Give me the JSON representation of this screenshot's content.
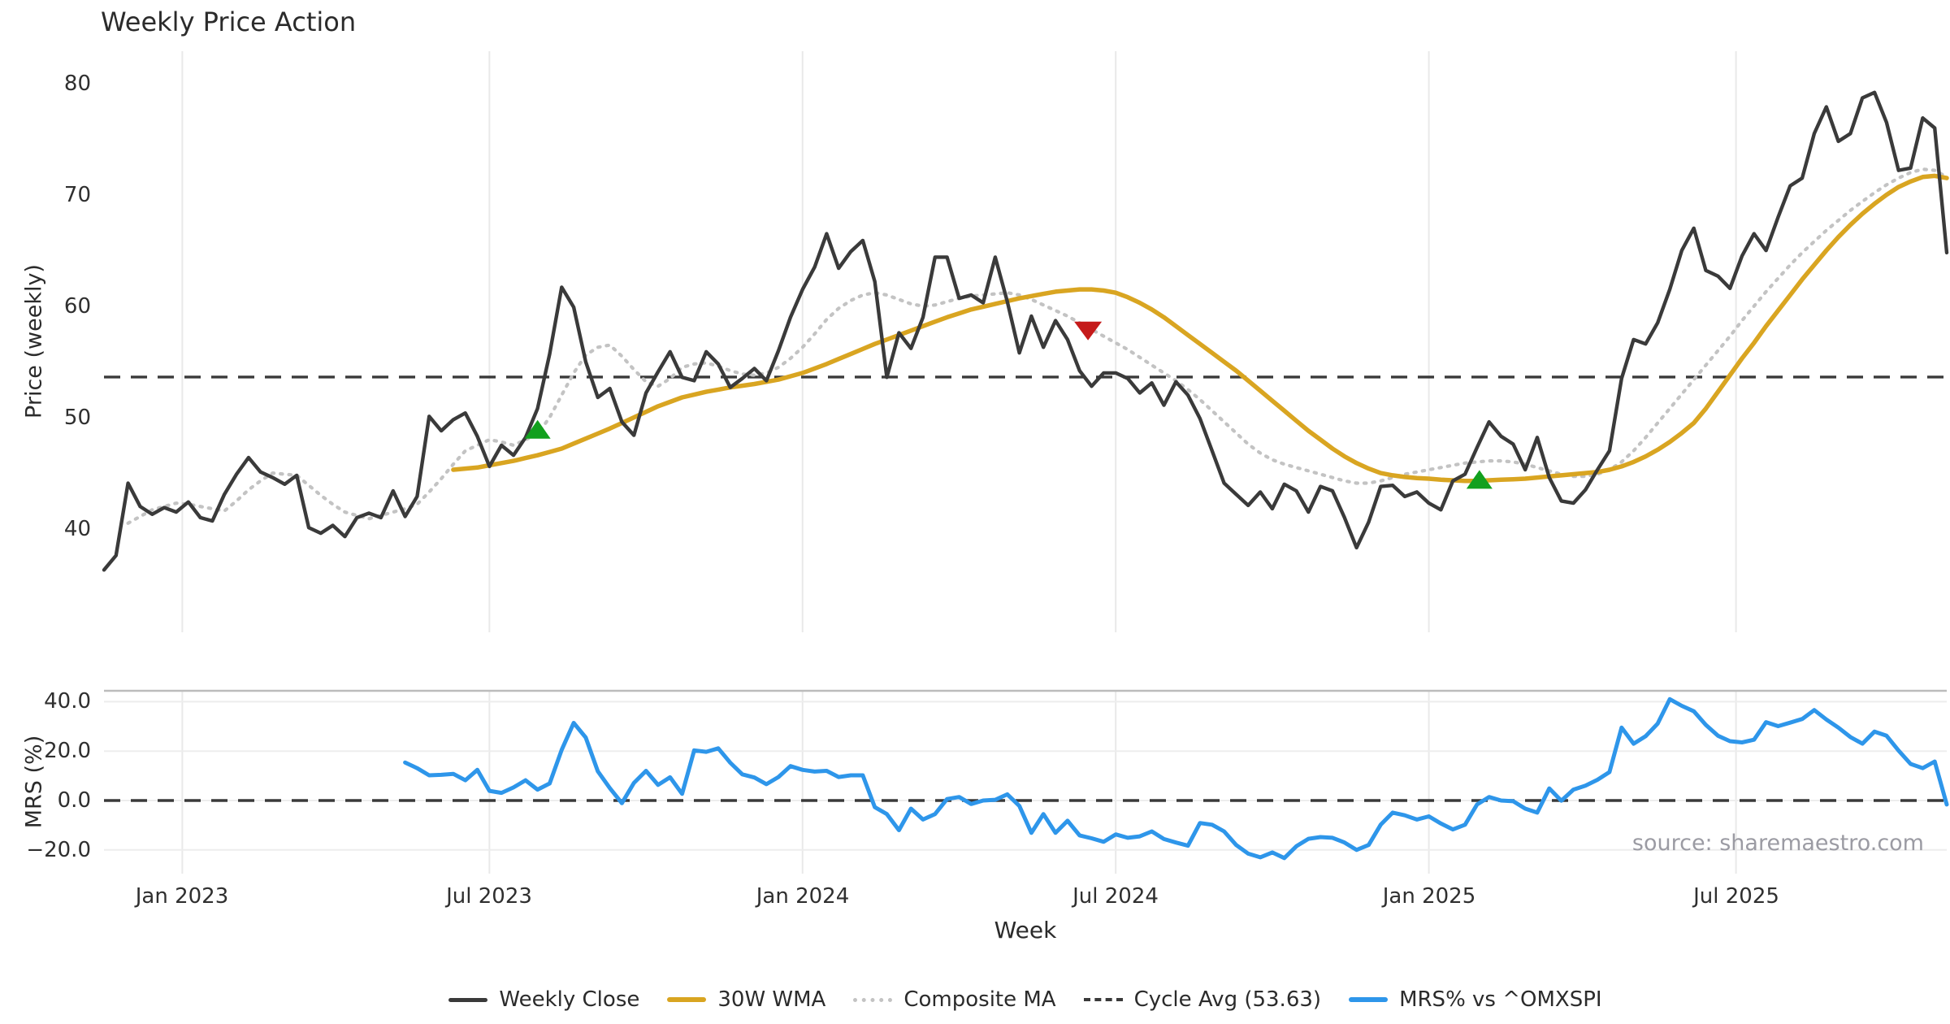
{
  "title": "Weekly Price Action",
  "source_note": "source: sharemaestro.com",
  "colors": {
    "weekly_close": "#3a3a3a",
    "wma": "#d9a521",
    "composite": "#c3c3c3",
    "cycle_avg": "#3a3a3a",
    "mrs": "#2e96ea",
    "buy_marker": "#12a01e",
    "sell_marker": "#c51a1a",
    "grid_vertical": "#e9e9e9",
    "grid_horizontal": "#ededed",
    "panel_spine": "#bcbcbc",
    "text": "#2b2b2b",
    "muted_text": "#9b9ba3"
  },
  "chart_data": [
    {
      "type": "line",
      "panel": "price",
      "title": "Weekly Price Action",
      "ylabel": "Price (weekly)",
      "xlabel": "Week",
      "ylim": [
        30.7,
        82.9
      ],
      "grid": "vertical-only",
      "legend_position": "bottom-center",
      "yticks": [
        {
          "value": 80,
          "label": "80"
        },
        {
          "value": 70,
          "label": "70"
        },
        {
          "value": 60,
          "label": "60"
        },
        {
          "value": 50,
          "label": "50"
        },
        {
          "value": 40,
          "label": "40"
        }
      ],
      "xticks": [
        {
          "week": 6.5,
          "label": "Jan 2023"
        },
        {
          "week": 32,
          "label": "Jul 2023"
        },
        {
          "week": 58,
          "label": "Jan 2024"
        },
        {
          "week": 84,
          "label": "Jul 2024"
        },
        {
          "week": 110,
          "label": "Jan 2025"
        },
        {
          "week": 135.5,
          "label": "Jul 2025"
        }
      ],
      "total_weeks": 154,
      "cycle_avg": 53.63,
      "series": [
        {
          "name": "Weekly Close",
          "style": "solid",
          "color": "#3a3a3a",
          "width": 4.4,
          "start_week": 0,
          "values": [
            36.3,
            37.6,
            44.1,
            42.0,
            41.3,
            41.9,
            41.5,
            42.4,
            41.0,
            40.7,
            43.1,
            44.9,
            46.4,
            45.1,
            44.6,
            44.0,
            44.8,
            40.1,
            39.6,
            40.3,
            39.3,
            41.0,
            41.4,
            41.0,
            43.4,
            41.1,
            42.9,
            50.1,
            48.8,
            49.8,
            50.4,
            48.3,
            45.6,
            47.5,
            46.6,
            48.2,
            50.8,
            55.7,
            61.7,
            59.9,
            55.0,
            51.8,
            52.6,
            49.6,
            48.4,
            52.2,
            54.1,
            55.9,
            53.6,
            53.3,
            55.9,
            54.8,
            52.7,
            53.5,
            54.4,
            53.3,
            56.0,
            59.0,
            61.5,
            63.5,
            66.5,
            63.4,
            64.9,
            65.9,
            62.2,
            53.6,
            57.6,
            56.2,
            59.0,
            64.4,
            64.4,
            60.7,
            61.0,
            60.3,
            64.4,
            60.4,
            55.8,
            59.1,
            56.3,
            58.7,
            57.0,
            54.2,
            52.8,
            54.0,
            54.0,
            53.5,
            52.2,
            53.1,
            51.1,
            53.2,
            52.0,
            49.9,
            47.0,
            44.1,
            43.1,
            42.1,
            43.3,
            41.8,
            44.0,
            43.4,
            41.5,
            43.8,
            43.4,
            41.0,
            38.3,
            40.6,
            43.8,
            43.9,
            42.9,
            43.3,
            42.3,
            41.7,
            44.3,
            44.9,
            47.3,
            49.6,
            48.3,
            47.6,
            45.3,
            48.2,
            44.6,
            42.5,
            42.3,
            43.5,
            45.3,
            47.0,
            53.5,
            57.0,
            56.6,
            58.5,
            61.5,
            65.0,
            67.0,
            63.2,
            62.7,
            61.6,
            64.5,
            66.5,
            65.0,
            68.0,
            70.8,
            71.5,
            75.5,
            77.9,
            74.8,
            75.5,
            78.7,
            79.2,
            76.5,
            72.2,
            72.4,
            76.9,
            76.0,
            64.8
          ]
        },
        {
          "name": "30W WMA",
          "style": "solid",
          "color": "#d9a521",
          "width": 5.5,
          "start_week": 29,
          "values": [
            45.3,
            45.4,
            45.5,
            45.7,
            45.9,
            46.1,
            46.35,
            46.6,
            46.9,
            47.2,
            47.65,
            48.1,
            48.55,
            49.0,
            49.5,
            50.0,
            50.5,
            51.0,
            51.4,
            51.8,
            52.05,
            52.3,
            52.5,
            52.7,
            52.85,
            53.0,
            53.2,
            53.4,
            53.7,
            54.0,
            54.4,
            54.8,
            55.25,
            55.7,
            56.15,
            56.6,
            57.0,
            57.4,
            57.8,
            58.2,
            58.6,
            59.0,
            59.35,
            59.7,
            59.95,
            60.2,
            60.45,
            60.7,
            60.9,
            61.1,
            61.3,
            61.4,
            61.5,
            61.5,
            61.4,
            61.2,
            60.8,
            60.3,
            59.7,
            59.0,
            58.2,
            57.4,
            56.6,
            55.8,
            55.0,
            54.2,
            53.3,
            52.4,
            51.5,
            50.6,
            49.7,
            48.8,
            48.0,
            47.2,
            46.5,
            45.9,
            45.4,
            45.0,
            44.8,
            44.65,
            44.55,
            44.5,
            44.4,
            44.35,
            44.3,
            44.3,
            44.35,
            44.4,
            44.45,
            44.5,
            44.6,
            44.7,
            44.8,
            44.9,
            45.0,
            45.1,
            45.3,
            45.6,
            46.0,
            46.5,
            47.1,
            47.8,
            48.6,
            49.5,
            50.8,
            52.3,
            53.8,
            55.3,
            56.7,
            58.2,
            59.6,
            61.0,
            62.4,
            63.7,
            65.0,
            66.2,
            67.3,
            68.3,
            69.2,
            70.0,
            70.7,
            71.2,
            71.6,
            71.7,
            71.5
          ]
        },
        {
          "name": "Composite MA",
          "style": "dotted",
          "color": "#c3c3c3",
          "width": 4.2,
          "start_week": 2,
          "values": [
            40.5,
            41.1,
            41.7,
            42.0,
            42.3,
            42.2,
            42.0,
            41.8,
            41.6,
            42.5,
            43.5,
            44.3,
            45.0,
            44.9,
            44.8,
            43.9,
            43.0,
            42.2,
            41.5,
            41.2,
            40.9,
            41.2,
            41.5,
            41.8,
            42.2,
            43.3,
            44.5,
            45.8,
            47.0,
            47.5,
            48.0,
            47.8,
            47.5,
            48.0,
            48.5,
            50.0,
            52.0,
            54.0,
            55.6,
            56.3,
            56.5,
            55.5,
            54.3,
            53.2,
            52.8,
            53.5,
            54.5,
            54.8,
            54.9,
            54.6,
            54.2,
            53.9,
            53.8,
            54.0,
            54.5,
            55.3,
            56.3,
            57.5,
            58.8,
            59.8,
            60.5,
            61.0,
            61.2,
            61.0,
            60.6,
            60.2,
            60.0,
            60.1,
            60.4,
            60.7,
            60.9,
            61.0,
            61.1,
            61.2,
            61.0,
            60.6,
            60.1,
            59.6,
            59.1,
            58.5,
            57.9,
            57.3,
            56.7,
            56.1,
            55.4,
            54.7,
            54.0,
            53.3,
            52.5,
            51.6,
            50.6,
            49.6,
            48.6,
            47.6,
            46.8,
            46.2,
            45.8,
            45.5,
            45.2,
            44.9,
            44.6,
            44.3,
            44.1,
            44.1,
            44.3,
            44.6,
            44.9,
            45.1,
            45.3,
            45.5,
            45.7,
            45.9,
            46.0,
            46.1,
            46.1,
            46.0,
            45.8,
            45.5,
            45.2,
            44.9,
            44.7,
            44.7,
            44.9,
            45.3,
            46.0,
            47.0,
            48.2,
            49.5,
            50.8,
            52.1,
            53.4,
            54.7,
            56.0,
            57.3,
            58.7,
            60.0,
            61.3,
            62.5,
            63.7,
            64.8,
            65.8,
            66.8,
            67.7,
            68.6,
            69.4,
            70.2,
            70.9,
            71.5,
            72.0,
            72.3,
            72.2,
            71.6
          ]
        }
      ],
      "markers": [
        {
          "type": "buy",
          "week": 36,
          "value": 48.9
        },
        {
          "type": "sell",
          "week": 81.7,
          "value": 57.8
        },
        {
          "type": "buy",
          "week": 114.2,
          "value": 44.4
        }
      ]
    },
    {
      "type": "line",
      "panel": "mrs",
      "ylabel": "MRS (%)",
      "ylim": [
        -29.6,
        44.4
      ],
      "zero_line": 0,
      "yticks": [
        {
          "value": 40,
          "label": "40.0"
        },
        {
          "value": 20,
          "label": "20.0"
        },
        {
          "value": 0,
          "label": "0.0"
        },
        {
          "value": -20,
          "label": "−20.0"
        }
      ],
      "total_weeks": 154,
      "series": [
        {
          "name": "MRS% vs ^OMXSPI",
          "style": "solid",
          "color": "#2e96ea",
          "width": 5,
          "start_week": 25,
          "values": [
            15.4,
            13.1,
            10.2,
            10.4,
            10.8,
            8.2,
            12.4,
            3.9,
            3.1,
            5.3,
            8.2,
            4.4,
            6.9,
            20.5,
            31.4,
            25.5,
            11.8,
            5.0,
            -1.1,
            7.1,
            12.0,
            6.3,
            9.4,
            2.7,
            20.3,
            19.7,
            21.1,
            15.3,
            10.6,
            9.3,
            6.6,
            9.5,
            13.9,
            12.4,
            11.7,
            12.0,
            9.5,
            10.2,
            10.2,
            -2.7,
            -5.5,
            -12.0,
            -3.3,
            -7.7,
            -5.5,
            0.6,
            1.4,
            -1.4,
            0.0,
            0.3,
            2.5,
            -2.2,
            -13.1,
            -5.5,
            -13.1,
            -8.2,
            -14.1,
            -15.3,
            -16.7,
            -13.7,
            -15.1,
            -14.5,
            -12.5,
            -15.6,
            -17.0,
            -18.3,
            -9.1,
            -9.8,
            -12.5,
            -18.0,
            -21.5,
            -23.0,
            -21.0,
            -23.3,
            -18.5,
            -15.5,
            -14.8,
            -15.1,
            -17.0,
            -20.0,
            -18.0,
            -9.8,
            -4.9,
            -6.0,
            -7.7,
            -6.4,
            -9.3,
            -11.7,
            -9.8,
            -1.6,
            1.4,
            0.0,
            -0.3,
            -3.3,
            -4.9,
            4.9,
            -0.1,
            4.4,
            6.0,
            8.4,
            11.5,
            29.5,
            23.0,
            26.0,
            31.1,
            41.0,
            38.3,
            36.1,
            30.6,
            26.2,
            24.0,
            23.5,
            24.6,
            31.7,
            30.1,
            31.5,
            33.0,
            36.6,
            32.8,
            29.5,
            25.7,
            23.0,
            27.9,
            26.2,
            20.2,
            14.8,
            13.1,
            15.8,
            -1.6
          ]
        }
      ]
    }
  ],
  "axis_labels": {
    "price_ylabel": "Price (weekly)",
    "mrs_ylabel": "MRS (%)",
    "xlabel": "Week"
  },
  "legend": {
    "items": [
      {
        "label": "Weekly Close",
        "style": "solid",
        "color": "#3a3a3a",
        "thickness": 5
      },
      {
        "label": "30W WMA",
        "style": "solid",
        "color": "#d9a521",
        "thickness": 6
      },
      {
        "label": "Composite MA",
        "style": "dotted",
        "color": "#c3c3c3",
        "thickness": 5
      },
      {
        "label": "Cycle Avg (53.63)",
        "style": "dashed",
        "color": "#3a3a3a",
        "thickness": 4
      },
      {
        "label": "MRS% vs ^OMXSPI",
        "style": "solid",
        "color": "#2e96ea",
        "thickness": 6
      }
    ]
  }
}
